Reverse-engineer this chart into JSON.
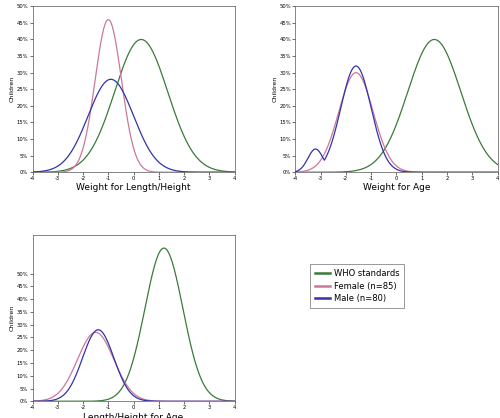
{
  "plots": [
    {
      "xlabel": "Weight for Length/Height",
      "ylabel": "Children",
      "who": {
        "mean": 0.3,
        "std": 1.05,
        "peak": 0.4
      },
      "female": {
        "mean": -1.0,
        "std": 0.52,
        "peak": 0.46
      },
      "male": {
        "mean": -0.9,
        "std": 0.9,
        "peak": 0.28
      },
      "xlim": [
        -4,
        4
      ],
      "ylim": [
        0,
        0.5
      ],
      "xticks": [
        -4,
        -3,
        -2,
        -1,
        0,
        1,
        2,
        3,
        4
      ]
    },
    {
      "xlabel": "Weight for Age",
      "ylabel": "Children",
      "who": {
        "mean": 1.5,
        "std": 1.05,
        "peak": 0.4
      },
      "female": {
        "mean": -1.6,
        "std": 0.68,
        "peak": 0.3
      },
      "male": {
        "mean": -1.6,
        "std": 0.6,
        "peak": 0.32
      },
      "male_bump": {
        "mean": -3.2,
        "std": 0.3,
        "peak": 0.07
      },
      "xlim": [
        -4,
        4
      ],
      "ylim": [
        0,
        0.5
      ],
      "xticks": [
        -4,
        -3,
        -2,
        -1,
        0,
        1,
        2,
        3,
        4
      ]
    },
    {
      "xlabel": "Length/Height for Age",
      "ylabel": "Children",
      "who": {
        "mean": 1.2,
        "std": 0.75,
        "peak": 0.6
      },
      "female": {
        "mean": -1.5,
        "std": 0.72,
        "peak": 0.27
      },
      "male": {
        "mean": -1.4,
        "std": 0.62,
        "peak": 0.28
      },
      "xlim": [
        -4,
        4
      ],
      "ylim": [
        0,
        0.65
      ],
      "xticks": [
        -4,
        -3,
        -2,
        -1,
        0,
        1,
        2,
        3,
        4
      ]
    }
  ],
  "colors": {
    "who": "#3a7a3a",
    "female": "#cc7799",
    "male": "#3333aa"
  },
  "legend": {
    "who": "WHO standards",
    "female": "Female (n=85)",
    "male": "Male (n=80)"
  },
  "ytick_pct": [
    0,
    5,
    10,
    15,
    20,
    25,
    30,
    35,
    40,
    45,
    50
  ],
  "background_color": "#ffffff",
  "linewidth": 0.9
}
